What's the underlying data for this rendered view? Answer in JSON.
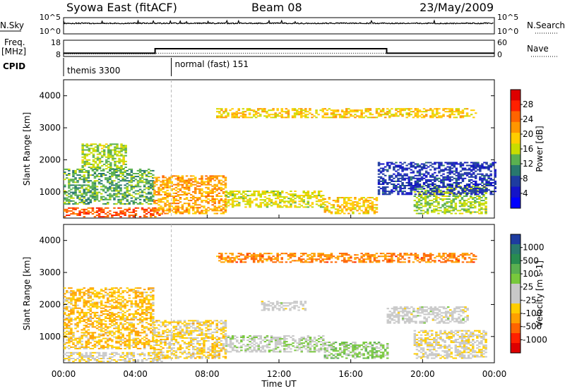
{
  "header": {
    "title": "Syowa East (fitACF)",
    "beam": "Beam 08",
    "date": "23/May/2009"
  },
  "side_labels": {
    "nsky": "N.Sky",
    "freq": "Freq.",
    "freq_unit": "[MHz]",
    "cpid": "CPID",
    "nsearch": "N.Search",
    "nave": "Nave"
  },
  "noise_panel": {
    "left_ticks": [
      "10^5",
      "10^0"
    ],
    "right_ticks": [
      "10^5",
      "10^0"
    ]
  },
  "freq_panel": {
    "left_ticks": [
      "18",
      "8"
    ],
    "right_ticks": [
      "60",
      "0"
    ],
    "freq_segments": [
      {
        "start": 0.0,
        "end": 5.1,
        "value": 10.0
      },
      {
        "start": 5.1,
        "end": 18.0,
        "value": 12.8
      },
      {
        "start": 18.0,
        "end": 24.0,
        "value": 10.0
      }
    ],
    "nave_segments": [
      {
        "start": 0.0,
        "end": 5.1,
        "value": 10
      },
      {
        "start": 5.1,
        "end": 24.0,
        "value": 12
      }
    ]
  },
  "cpid_panel": {
    "modes": [
      {
        "name": "themis 3300",
        "start": 0.0
      },
      {
        "name": "normal (fast) 151",
        "start": 6.0
      }
    ]
  },
  "range_panels": {
    "y_label": "Slant Range [km]",
    "y_ticks": [
      "4000",
      "3000",
      "2000",
      "1000"
    ],
    "x_label": "Time UT",
    "x_ticks": [
      "00:00",
      "04:00",
      "08:00",
      "12:00",
      "16:00",
      "20:00",
      "00:00"
    ]
  },
  "power_colorbar": {
    "label": "Power [dB]",
    "ticks": [
      "28",
      "24",
      "20",
      "16",
      "12",
      "8",
      "4"
    ],
    "colors": [
      "#dd0000",
      "#ff2000",
      "#ff6400",
      "#ff9600",
      "#ffcd00",
      "#c8dc00",
      "#5ab050",
      "#28786e",
      "#1e3ca0",
      "#1414c8",
      "#0000ff"
    ]
  },
  "velocity_colorbar": {
    "label": "Velocity [m s-1]",
    "ticks": [
      "1000",
      "500",
      "100",
      "25",
      "-25",
      "-100",
      "-500",
      "-1000"
    ],
    "colors": [
      "#1e3ca0",
      "#28786e",
      "#288c50",
      "#5ab050",
      "#78c83c",
      "#c8c8c8",
      "#c8c8c8",
      "#ffcd00",
      "#ffa000",
      "#ff6400",
      "#ff2000",
      "#dd0000"
    ]
  },
  "chart_data": {
    "type": "heatmap",
    "title": "Syowa East (fitACF)",
    "subtitle": "Beam 08",
    "date": "23/May/2009",
    "xlabel": "Time UT",
    "ylabel": "Slant Range [km]",
    "xlim": [
      0,
      24
    ],
    "ylim": [
      180,
      4500
    ],
    "panels": [
      {
        "name": "Power [dB]",
        "range": [
          0,
          30
        ],
        "echo_regions": [
          {
            "t0": 0.0,
            "t1": 5.5,
            "r0": 200,
            "r1": 500,
            "value": 24
          },
          {
            "t0": 0.0,
            "t1": 5.0,
            "r0": 600,
            "r1": 1700,
            "value": 12
          },
          {
            "t0": 1.0,
            "t1": 3.5,
            "r0": 1700,
            "r1": 2500,
            "value": 14
          },
          {
            "t0": 5.0,
            "t1": 9.0,
            "r0": 300,
            "r1": 1500,
            "value": 20
          },
          {
            "t0": 9.0,
            "t1": 14.5,
            "r0": 500,
            "r1": 1000,
            "value": 16
          },
          {
            "t0": 14.5,
            "t1": 17.5,
            "r0": 300,
            "r1": 800,
            "value": 18
          },
          {
            "t0": 19.5,
            "t1": 23.5,
            "r0": 300,
            "r1": 1200,
            "value": 14
          },
          {
            "t0": 17.5,
            "t1": 24.0,
            "r0": 900,
            "r1": 1900,
            "value": 6
          },
          {
            "t0": 8.5,
            "t1": 23.0,
            "r0": 3300,
            "r1": 3600,
            "value": 18
          }
        ]
      },
      {
        "name": "Velocity [m s-1]",
        "range": [
          -1000,
          1000
        ],
        "echo_regions": [
          {
            "t0": 0.0,
            "t1": 5.5,
            "r0": 200,
            "r1": 500,
            "value": -100
          },
          {
            "t0": 0.0,
            "t1": 5.0,
            "r0": 600,
            "r1": 2500,
            "value": -300
          },
          {
            "t0": 5.0,
            "t1": 9.0,
            "r0": 300,
            "r1": 1500,
            "value": -200
          },
          {
            "t0": 9.0,
            "t1": 14.5,
            "r0": 500,
            "r1": 1000,
            "value": 100
          },
          {
            "t0": 11.0,
            "t1": 13.5,
            "r0": 1800,
            "r1": 2100,
            "value": 0
          },
          {
            "t0": 14.5,
            "t1": 18.0,
            "r0": 300,
            "r1": 800,
            "value": 200
          },
          {
            "t0": 19.5,
            "t1": 23.5,
            "r0": 300,
            "r1": 1200,
            "value": -100
          },
          {
            "t0": 18.0,
            "t1": 22.5,
            "r0": 1400,
            "r1": 1900,
            "value": 0
          },
          {
            "t0": 8.5,
            "t1": 23.0,
            "r0": 3300,
            "r1": 3600,
            "value": -500
          }
        ]
      }
    ]
  }
}
